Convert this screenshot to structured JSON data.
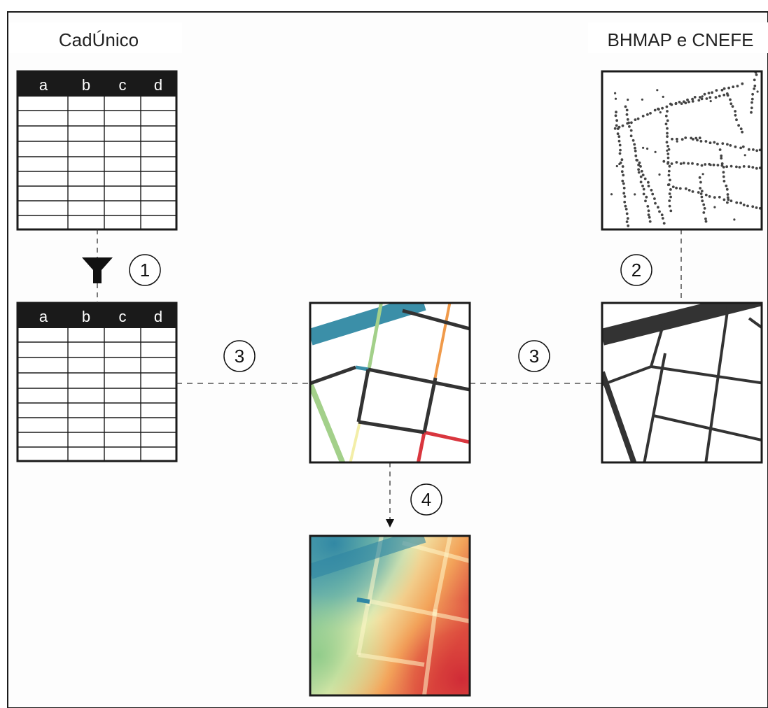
{
  "labels": {
    "left_source": "CadÚnico",
    "right_source": "BHMAP e CNEFE"
  },
  "table_columns": [
    "a",
    "b",
    "c",
    "d"
  ],
  "steps": [
    "1",
    "2",
    "3",
    "3",
    "4"
  ],
  "colors": {
    "frame": "#1a1a1a",
    "dark_line": "#333333",
    "blue": "#3b8fa8",
    "green": "#a3d08a",
    "yellow": "#f3eea8",
    "orange": "#f09a4a",
    "red": "#d9363e",
    "dot": "#444444"
  },
  "icons": [
    "funnel-icon",
    "arrow-down-icon"
  ]
}
